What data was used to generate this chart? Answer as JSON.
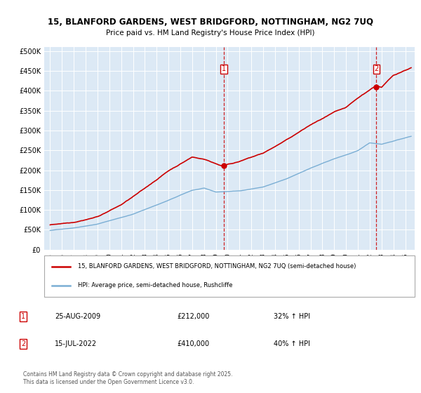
{
  "title_line1": "15, BLANFORD GARDENS, WEST BRIDGFORD, NOTTINGHAM, NG2 7UQ",
  "title_line2": "Price paid vs. HM Land Registry's House Price Index (HPI)",
  "background_color": "#dce9f5",
  "yticks": [
    0,
    50000,
    100000,
    150000,
    200000,
    250000,
    300000,
    350000,
    400000,
    450000,
    500000
  ],
  "ytick_labels": [
    "£0",
    "£50K",
    "£100K",
    "£150K",
    "£200K",
    "£250K",
    "£300K",
    "£350K",
    "£400K",
    "£450K",
    "£500K"
  ],
  "ylim": [
    0,
    510000
  ],
  "red_color": "#cc0000",
  "blue_color": "#7aaed4",
  "marker1_year": 2009.65,
  "marker1_value": 212000,
  "marker1_label": "1",
  "marker1_date_str": "25-AUG-2009",
  "marker1_price_str": "£212,000",
  "marker1_hpi_str": "32% ↑ HPI",
  "marker2_year": 2022.54,
  "marker2_value": 410000,
  "marker2_label": "2",
  "marker2_date_str": "15-JUL-2022",
  "marker2_price_str": "£410,000",
  "marker2_hpi_str": "40% ↑ HPI",
  "legend_label_red": "15, BLANFORD GARDENS, WEST BRIDGFORD, NOTTINGHAM, NG2 7UQ (semi-detached house)",
  "legend_label_blue": "HPI: Average price, semi-detached house, Rushcliffe",
  "footer_text": "Contains HM Land Registry data © Crown copyright and database right 2025.\nThis data is licensed under the Open Government Licence v3.0.",
  "xlim_left": 1994.5,
  "xlim_right": 2025.8
}
